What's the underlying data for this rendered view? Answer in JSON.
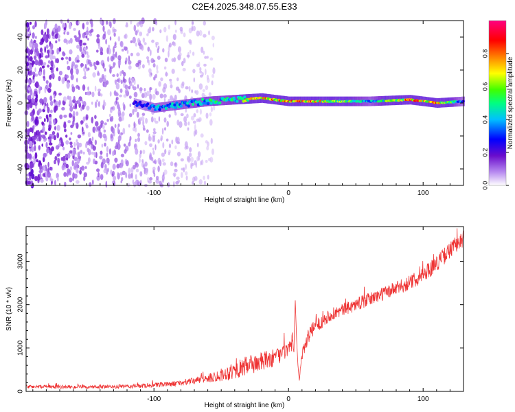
{
  "title": "C2E4.2025.348.07.55.E33",
  "chart_data": [
    {
      "type": "heatmap",
      "name": "spectrogram",
      "xlabel": "Height of straight line (km)",
      "ylabel": "Frequency (Hz)",
      "xlim": [
        -195,
        130
      ],
      "ylim": [
        -50,
        50
      ],
      "xticks": [
        -100,
        0,
        100
      ],
      "yticks": [
        -40,
        -20,
        0,
        20,
        40
      ],
      "colorbar": {
        "label": "Normalized spectral amplitude",
        "range": [
          0,
          1
        ],
        "ticks": [
          "0.0",
          "0.2",
          "0.4",
          "0.6",
          "0.8"
        ],
        "tick_values": [
          0.0,
          0.2,
          0.4,
          0.6,
          0.8
        ],
        "colormap": [
          "#ffffff",
          "#8a2be2",
          "#0000ff",
          "#00ffff",
          "#00ff00",
          "#ffff00",
          "#ff7f00",
          "#ff0000",
          "#ff00ff"
        ]
      },
      "noise_region": {
        "x_range": [
          -195,
          -55
        ],
        "freq_range": [
          -50,
          50
        ]
      },
      "signal_band": {
        "description": "narrow band near 0 Hz",
        "x": [
          -115,
          -100,
          -80,
          -60,
          -40,
          -20,
          0,
          20,
          60,
          90,
          110,
          130
        ],
        "freq": [
          0,
          -3,
          -1,
          1,
          2,
          3,
          1,
          1,
          1,
          2,
          0,
          1
        ],
        "peak_amplitude": [
          0.3,
          0.45,
          0.5,
          0.55,
          0.6,
          0.95,
          0.95,
          0.9,
          0.5,
          0.95,
          0.9,
          0.4
        ]
      }
    },
    {
      "type": "line",
      "name": "snr",
      "xlabel": "Height of straight line (km)",
      "ylabel": "SNR (10 * v/v)",
      "xlim": [
        -195,
        130
      ],
      "ylim": [
        0,
        3800
      ],
      "xticks": [
        -100,
        0,
        100
      ],
      "yticks": [
        0,
        1000,
        2000,
        3000
      ],
      "color": "#ee3333",
      "x": [
        -195,
        -150,
        -120,
        -100,
        -80,
        -60,
        -50,
        -40,
        -30,
        -20,
        -10,
        0,
        4,
        5,
        6,
        7,
        8,
        10,
        15,
        20,
        30,
        50,
        70,
        90,
        100,
        110,
        120,
        130
      ],
      "y": [
        110,
        100,
        110,
        140,
        190,
        300,
        380,
        480,
        600,
        680,
        780,
        960,
        1050,
        2100,
        1200,
        600,
        250,
        900,
        1300,
        1500,
        1750,
        2000,
        2250,
        2500,
        2700,
        2950,
        3250,
        3550
      ],
      "noise_amplitude": [
        40,
        40,
        45,
        55,
        60,
        100,
        150,
        200,
        230,
        230,
        200,
        180,
        150,
        0,
        0,
        0,
        0,
        200,
        180,
        170,
        150,
        150,
        160,
        170,
        180,
        190,
        200,
        210
      ]
    }
  ]
}
